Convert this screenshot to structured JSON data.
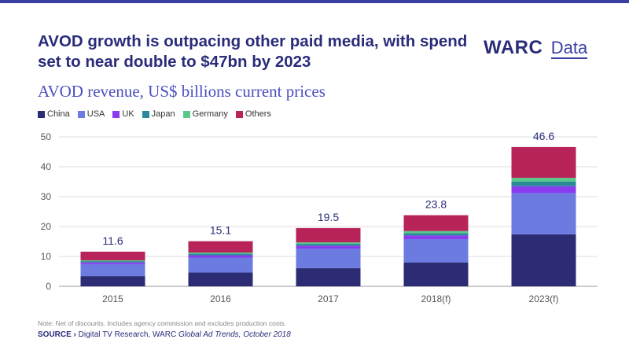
{
  "header": {
    "title": "AVOD growth is outpacing other paid media, with spend set to near double to $47bn by 2023",
    "logo_main": "WARC",
    "logo_sub": "Data"
  },
  "footer": {
    "note": "Note: Net of discounts. Includes agency commission and excludes production costs.",
    "source_lead": "SOURCE ›",
    "source_text": " Digital TV Research, WARC ",
    "source_italic": "Global Ad Trends, October 2018"
  },
  "chart_data": {
    "type": "bar",
    "stacked": true,
    "title": "AVOD revenue, US$ billions current prices",
    "categories": [
      "2015",
      "2016",
      "2017",
      "2018(f)",
      "2023(f)"
    ],
    "series": [
      {
        "name": "China",
        "color": "#2c2c74",
        "values": [
          3.4,
          4.6,
          6.1,
          8.0,
          17.4
        ]
      },
      {
        "name": "USA",
        "color": "#6b7be0",
        "values": [
          4.0,
          5.0,
          6.5,
          7.8,
          13.8
        ]
      },
      {
        "name": "UK",
        "color": "#8a3cf0",
        "values": [
          0.6,
          0.8,
          1.0,
          1.2,
          2.3
        ]
      },
      {
        "name": "Japan",
        "color": "#2a8a9a",
        "values": [
          0.4,
          0.5,
          0.6,
          0.8,
          1.5
        ]
      },
      {
        "name": "Germany",
        "color": "#58c98a",
        "values": [
          0.3,
          0.4,
          0.5,
          0.7,
          1.3
        ]
      },
      {
        "name": "Others",
        "color": "#b8245a",
        "values": [
          2.9,
          3.8,
          4.8,
          5.3,
          10.3
        ]
      }
    ],
    "totals": [
      "11.6",
      "15.1",
      "19.5",
      "23.8",
      "46.6"
    ],
    "ylim": [
      0,
      50
    ],
    "yticks": [
      0,
      10,
      20,
      30,
      40,
      50
    ],
    "grid": true,
    "legend": "top-left"
  }
}
